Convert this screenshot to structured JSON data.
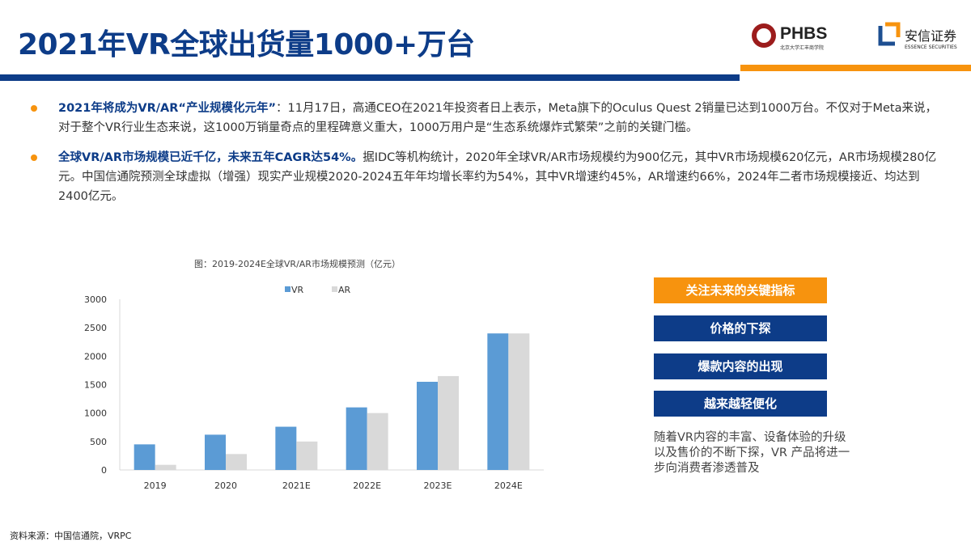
{
  "header": {
    "title": "2021年VR全球出货量1000+万台",
    "logo_left": "PHBS 北京大学汇丰商学院",
    "logo_right": "安信证券 ESSENCE SECURITIES"
  },
  "bullets": [
    {
      "highlight": "2021年将成为VR/AR“产业规模化元年”",
      "text": "：11月17日，高通CEO在2021年投资者日上表示，Meta旗下的Oculus Quest 2销量已达到1000万台。不仅对于Meta来说，对于整个VR行业生态来说，这1000万销量奇点的里程碑意义重大，1000万用户是“生态系统爆炸式繁荣”之前的关键门槛。"
    },
    {
      "highlight": "全球VR/AR市场规模已近千亿，未来五年CAGR达54%。",
      "text": "据IDC等机构统计，2020年全球VR/AR市场规模约为900亿元，其中VR市场规模620亿元，AR市场规模280亿元。中国信通院预测全球虚拟（增强）现实产业规模2020-2024五年年均增长率约为54%，其中VR增速约45%，AR增速约66%，2024年二者市场规模接近、均达到2400亿元。"
    }
  ],
  "chart_data": {
    "type": "bar",
    "title": "图：2019-2024E全球VR/AR市场规模预测（亿元）",
    "categories": [
      "2019",
      "2020",
      "2021E",
      "2022E",
      "2023E",
      "2024E"
    ],
    "series": [
      {
        "name": "VR",
        "color": "#5b9bd5",
        "values": [
          450,
          620,
          760,
          1100,
          1550,
          2400
        ]
      },
      {
        "name": "AR",
        "color": "#d9d9d9",
        "values": [
          90,
          280,
          500,
          1000,
          1650,
          2400
        ]
      }
    ],
    "ylim": [
      0,
      3000
    ],
    "yticks": [
      "0",
      "500",
      "1000",
      "1500",
      "2000",
      "2500",
      "3000"
    ],
    "grid": false,
    "legend": "top"
  },
  "side": {
    "header": "关注未来的关键指标",
    "items": [
      "价格的下探",
      "爆款内容的出现",
      "越来越轻便化"
    ],
    "note": "随着VR内容的丰富、设备体验的升级以及售价的不断下探，VR 产品将进一步向消费者渗透普及",
    "header_color": "#f7930e",
    "item_color": "#0d3c88"
  },
  "source": "资料来源：中国信通院，VRPC"
}
